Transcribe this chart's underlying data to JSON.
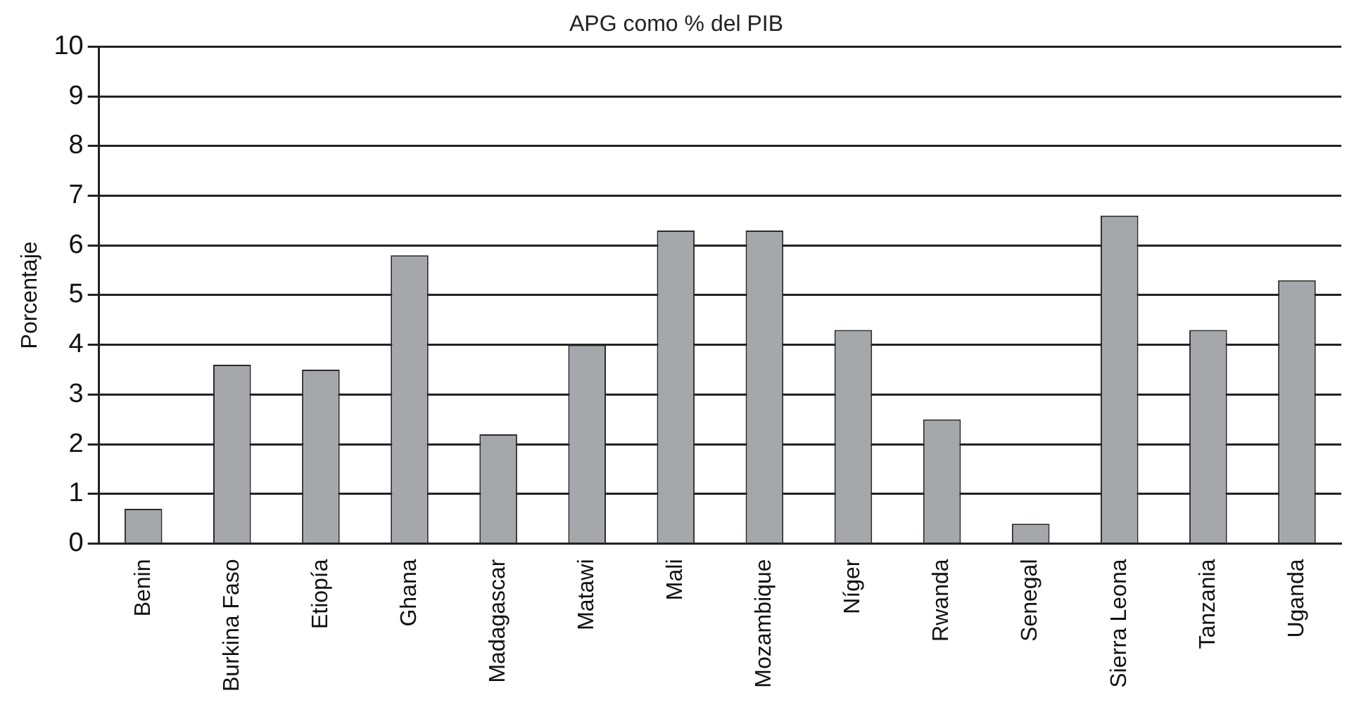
{
  "chart_data": {
    "type": "bar",
    "title": "APG como % del PIB",
    "ylabel": "Porcentaje",
    "categories": [
      "Benin",
      "Burkina Faso",
      "Etiopía",
      "Ghana",
      "Madagascar",
      "Matawi",
      "Mali",
      "Mozambique",
      "Níger",
      "Rwanda",
      "Senegal",
      "Sierra Leona",
      "Tanzania",
      "Uganda"
    ],
    "values": [
      0.7,
      3.6,
      3.5,
      5.8,
      2.2,
      4.0,
      6.3,
      6.3,
      4.3,
      2.5,
      0.4,
      6.6,
      4.3,
      5.3
    ],
    "color": "#a6a7aa",
    "ylim": [
      0,
      10
    ],
    "yticks": [
      0,
      1,
      2,
      3,
      4,
      5,
      6,
      7,
      8,
      9,
      10
    ],
    "grid": "y",
    "legend": false
  }
}
